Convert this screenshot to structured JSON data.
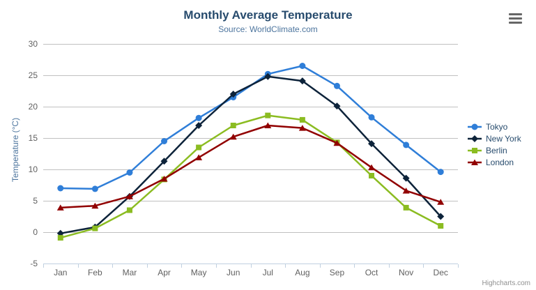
{
  "credits": {
    "label": "Highcharts.com"
  },
  "export_menu": {
    "icon": "hamburger-icon"
  },
  "theme": {
    "title_color": "#274b6d",
    "subtitle_color": "#4d759e",
    "axis_label_color": "#606060",
    "axis_title_color": "#4d759e",
    "grid_color": "#c0c0c0",
    "axis_line_color": "#c0d0e0",
    "legend_text_color": "#274b6d",
    "credits_color": "#909090",
    "menu_icon_color": "#666666"
  },
  "chart_data": {
    "type": "line",
    "title": "Monthly Average Temperature",
    "subtitle": "Source: WorldClimate.com",
    "categories": [
      "Jan",
      "Feb",
      "Mar",
      "Apr",
      "May",
      "Jun",
      "Jul",
      "Aug",
      "Sep",
      "Oct",
      "Nov",
      "Dec"
    ],
    "series": [
      {
        "name": "Tokyo",
        "color": "#2f7ed8",
        "marker": "circle",
        "values": [
          7.0,
          6.9,
          9.5,
          14.5,
          18.2,
          21.5,
          25.2,
          26.5,
          23.3,
          18.3,
          13.9,
          9.6
        ]
      },
      {
        "name": "New York",
        "color": "#0d233a",
        "marker": "diamond",
        "values": [
          -0.2,
          0.8,
          5.7,
          11.3,
          17.0,
          22.0,
          24.8,
          24.1,
          20.1,
          14.1,
          8.6,
          2.5
        ]
      },
      {
        "name": "Berlin",
        "color": "#8bbc21",
        "marker": "square",
        "values": [
          -0.9,
          0.6,
          3.5,
          8.4,
          13.5,
          17.0,
          18.6,
          17.9,
          14.3,
          9.0,
          3.9,
          1.0
        ]
      },
      {
        "name": "London",
        "color": "#910000",
        "marker": "triangle",
        "values": [
          3.9,
          4.2,
          5.7,
          8.5,
          11.9,
          15.2,
          17.0,
          16.6,
          14.2,
          10.3,
          6.6,
          4.8
        ]
      }
    ],
    "xlabel": "",
    "ylabel": "Temperature (°C)",
    "ylim": [
      -5,
      30
    ],
    "ytick_interval": 5,
    "grid": true,
    "legend_position": "right"
  }
}
